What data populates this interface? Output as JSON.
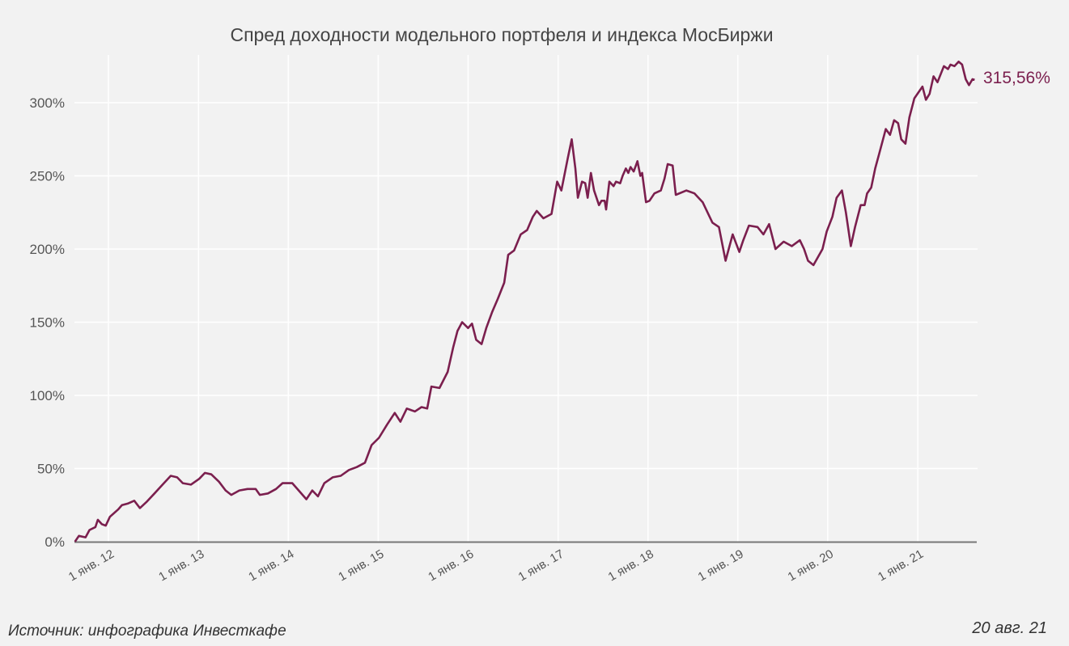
{
  "chart_data": {
    "type": "line",
    "title": "Спред доходности модельного портфеля и индекса МосБиржи",
    "xlabel": "",
    "ylabel": "",
    "xlim": [
      "2011-08-18",
      "2021-08-20"
    ],
    "ylim": [
      0,
      320
    ],
    "grid": true,
    "legend": "none",
    "x_ticks": [
      {
        "date": "2012-01-01",
        "label": "1 янв. 12"
      },
      {
        "date": "2013-01-01",
        "label": "1 янв. 13"
      },
      {
        "date": "2014-01-01",
        "label": "1 янв. 14"
      },
      {
        "date": "2015-01-01",
        "label": "1 янв. 15"
      },
      {
        "date": "2016-01-01",
        "label": "1 янв. 16"
      },
      {
        "date": "2017-01-01",
        "label": "1 янв. 17"
      },
      {
        "date": "2018-01-01",
        "label": "1 янв. 18"
      },
      {
        "date": "2019-01-01",
        "label": "1 янв. 19"
      },
      {
        "date": "2020-01-01",
        "label": "1 янв. 20"
      },
      {
        "date": "2021-01-01",
        "label": "1 янв. 21"
      }
    ],
    "y_ticks": [
      {
        "value": 0,
        "label": "0%"
      },
      {
        "value": 50,
        "label": "50%"
      },
      {
        "value": 100,
        "label": "100%"
      },
      {
        "value": 150,
        "label": "150%"
      },
      {
        "value": 200,
        "label": "200%"
      },
      {
        "value": 250,
        "label": "250%"
      },
      {
        "value": 300,
        "label": "300%"
      }
    ],
    "series": [
      {
        "color": "#7b1f4e",
        "end_label": "315,56%",
        "points": [
          [
            "2011-08-18",
            0
          ],
          [
            "2011-09-03",
            4
          ],
          [
            "2011-09-30",
            3
          ],
          [
            "2011-10-16",
            8
          ],
          [
            "2011-11-09",
            10
          ],
          [
            "2011-11-19",
            15
          ],
          [
            "2011-12-05",
            12
          ],
          [
            "2011-12-21",
            11
          ],
          [
            "2012-01-07",
            17
          ],
          [
            "2012-02-09",
            22
          ],
          [
            "2012-02-25",
            25
          ],
          [
            "2012-03-19",
            26
          ],
          [
            "2012-04-15",
            28
          ],
          [
            "2012-05-08",
            23
          ],
          [
            "2012-06-03",
            27
          ],
          [
            "2012-07-06",
            33
          ],
          [
            "2012-08-08",
            39
          ],
          [
            "2012-09-10",
            45
          ],
          [
            "2012-10-06",
            44
          ],
          [
            "2012-10-29",
            40
          ],
          [
            "2012-12-01",
            39
          ],
          [
            "2013-01-04",
            43
          ],
          [
            "2013-01-27",
            47
          ],
          [
            "2013-02-22",
            46
          ],
          [
            "2013-03-25",
            41
          ],
          [
            "2013-04-21",
            35
          ],
          [
            "2013-05-14",
            32
          ],
          [
            "2013-06-16",
            35
          ],
          [
            "2013-07-19",
            36
          ],
          [
            "2013-08-21",
            36
          ],
          [
            "2013-09-07",
            32
          ],
          [
            "2013-10-10",
            33
          ],
          [
            "2013-11-12",
            36
          ],
          [
            "2013-12-08",
            40
          ],
          [
            "2014-01-17",
            40
          ],
          [
            "2014-02-12",
            35
          ],
          [
            "2014-03-15",
            29
          ],
          [
            "2014-04-08",
            35
          ],
          [
            "2014-05-01",
            31
          ],
          [
            "2014-05-27",
            40
          ],
          [
            "2014-06-30",
            44
          ],
          [
            "2014-08-02",
            45
          ],
          [
            "2014-09-04",
            49
          ],
          [
            "2014-10-06",
            51
          ],
          [
            "2014-11-08",
            54
          ],
          [
            "2014-12-05",
            66
          ],
          [
            "2015-01-04",
            71
          ],
          [
            "2015-02-06",
            80
          ],
          [
            "2015-03-09",
            88
          ],
          [
            "2015-04-01",
            82
          ],
          [
            "2015-04-27",
            91
          ],
          [
            "2015-05-30",
            89
          ],
          [
            "2015-06-26",
            92
          ],
          [
            "2015-07-19",
            91
          ],
          [
            "2015-08-05",
            106
          ],
          [
            "2015-09-07",
            105
          ],
          [
            "2015-10-10",
            116
          ],
          [
            "2015-11-02",
            133
          ],
          [
            "2015-11-19",
            144
          ],
          [
            "2015-12-08",
            150
          ],
          [
            "2016-01-01",
            146
          ],
          [
            "2016-01-17",
            149
          ],
          [
            "2016-02-03",
            138
          ],
          [
            "2016-02-25",
            135
          ],
          [
            "2016-03-15",
            146
          ],
          [
            "2016-04-08",
            157
          ],
          [
            "2016-05-01",
            166
          ],
          [
            "2016-05-27",
            177
          ],
          [
            "2016-06-12",
            196
          ],
          [
            "2016-07-06",
            199
          ],
          [
            "2016-08-02",
            210
          ],
          [
            "2016-08-28",
            213
          ],
          [
            "2016-09-20",
            222
          ],
          [
            "2016-10-06",
            226
          ],
          [
            "2016-11-02",
            221
          ],
          [
            "2016-12-05",
            224
          ],
          [
            "2016-12-28",
            246
          ],
          [
            "2017-01-14",
            240
          ],
          [
            "2017-02-09",
            262
          ],
          [
            "2017-02-25",
            275
          ],
          [
            "2017-03-12",
            255
          ],
          [
            "2017-03-22",
            235
          ],
          [
            "2017-04-08",
            246
          ],
          [
            "2017-04-21",
            245
          ],
          [
            "2017-05-01",
            235
          ],
          [
            "2017-05-14",
            252
          ],
          [
            "2017-05-27",
            240
          ],
          [
            "2017-06-16",
            230
          ],
          [
            "2017-06-26",
            233
          ],
          [
            "2017-07-09",
            233
          ],
          [
            "2017-07-15",
            227
          ],
          [
            "2017-07-28",
            246
          ],
          [
            "2017-08-14",
            243
          ],
          [
            "2017-08-24",
            246
          ],
          [
            "2017-09-10",
            245
          ],
          [
            "2017-09-20",
            250
          ],
          [
            "2017-10-03",
            255
          ],
          [
            "2017-10-13",
            252
          ],
          [
            "2017-10-22",
            256
          ],
          [
            "2017-11-04",
            253
          ],
          [
            "2017-11-19",
            260
          ],
          [
            "2017-12-01",
            250
          ],
          [
            "2017-12-08",
            252
          ],
          [
            "2017-12-24",
            232
          ],
          [
            "2018-01-07",
            233
          ],
          [
            "2018-01-27",
            238
          ],
          [
            "2018-02-22",
            240
          ],
          [
            "2018-03-09",
            248
          ],
          [
            "2018-03-22",
            258
          ],
          [
            "2018-04-11",
            257
          ],
          [
            "2018-04-24",
            237
          ],
          [
            "2018-06-06",
            240
          ],
          [
            "2018-07-09",
            238
          ],
          [
            "2018-08-11",
            232
          ],
          [
            "2018-09-20",
            218
          ],
          [
            "2018-10-16",
            215
          ],
          [
            "2018-11-12",
            192
          ],
          [
            "2018-12-11",
            210
          ],
          [
            "2019-01-07",
            198
          ],
          [
            "2019-01-23",
            206
          ],
          [
            "2019-02-15",
            216
          ],
          [
            "2019-03-22",
            215
          ],
          [
            "2019-04-15",
            210
          ],
          [
            "2019-05-08",
            217
          ],
          [
            "2019-06-03",
            200
          ],
          [
            "2019-07-06",
            205
          ],
          [
            "2019-08-08",
            202
          ],
          [
            "2019-09-10",
            206
          ],
          [
            "2019-09-27",
            200
          ],
          [
            "2019-10-13",
            192
          ],
          [
            "2019-11-04",
            189
          ],
          [
            "2019-12-11",
            200
          ],
          [
            "2019-12-28",
            212
          ],
          [
            "2020-01-20",
            222
          ],
          [
            "2020-02-06",
            235
          ],
          [
            "2020-02-28",
            240
          ],
          [
            "2020-03-15",
            225
          ],
          [
            "2020-04-04",
            202
          ],
          [
            "2020-04-21",
            215
          ],
          [
            "2020-05-14",
            230
          ],
          [
            "2020-05-30",
            230
          ],
          [
            "2020-06-09",
            238
          ],
          [
            "2020-06-26",
            242
          ],
          [
            "2020-07-12",
            255
          ],
          [
            "2020-07-28",
            265
          ],
          [
            "2020-08-24",
            282
          ],
          [
            "2020-09-10",
            278
          ],
          [
            "2020-09-27",
            288
          ],
          [
            "2020-10-13",
            286
          ],
          [
            "2020-10-26",
            275
          ],
          [
            "2020-11-12",
            272
          ],
          [
            "2020-11-28",
            290
          ],
          [
            "2020-12-18",
            303
          ],
          [
            "2021-01-20",
            311
          ],
          [
            "2021-02-03",
            302
          ],
          [
            "2021-02-18",
            306
          ],
          [
            "2021-03-06",
            318
          ],
          [
            "2021-03-22",
            314
          ],
          [
            "2021-04-17",
            325
          ],
          [
            "2021-05-04",
            323
          ],
          [
            "2021-05-14",
            326
          ],
          [
            "2021-05-30",
            325
          ],
          [
            "2021-06-16",
            328
          ],
          [
            "2021-06-30",
            326
          ],
          [
            "2021-07-15",
            316
          ],
          [
            "2021-07-28",
            312
          ],
          [
            "2021-08-11",
            316
          ],
          [
            "2021-08-20",
            315.56
          ]
        ]
      }
    ]
  },
  "footer": {
    "source": "Источник: инфографика Инвесткафе",
    "date": "20 авг. 21"
  }
}
